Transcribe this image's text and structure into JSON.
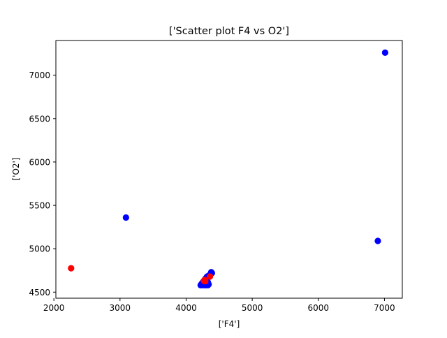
{
  "chart_data": {
    "type": "scatter",
    "title": "['Scatter plot F4 vs O2']",
    "xlabel": "['F4']",
    "ylabel": "['O2']",
    "xlim": [
      2030,
      7270
    ],
    "ylim": [
      4430,
      7400
    ],
    "xticks": [
      2000,
      3000,
      4000,
      5000,
      6000,
      7000
    ],
    "yticks": [
      4500,
      5000,
      5500,
      6000,
      6500,
      7000
    ],
    "xtick_labels": [
      "2000",
      "3000",
      "4000",
      "5000",
      "6000",
      "7000"
    ],
    "ytick_labels": [
      "4500",
      "5000",
      "5500",
      "6000",
      "6500",
      "7000"
    ],
    "grid": false,
    "series": [
      {
        "color": "#0000ff",
        "points": [
          {
            "x": 7010,
            "y": 7260
          },
          {
            "x": 3090,
            "y": 5360
          },
          {
            "x": 6900,
            "y": 5090
          },
          {
            "x": 4380,
            "y": 4730
          },
          {
            "x": 4390,
            "y": 4720
          },
          {
            "x": 4370,
            "y": 4710
          },
          {
            "x": 4340,
            "y": 4690
          },
          {
            "x": 4320,
            "y": 4680
          },
          {
            "x": 4310,
            "y": 4670
          },
          {
            "x": 4300,
            "y": 4660
          },
          {
            "x": 4290,
            "y": 4650
          },
          {
            "x": 4280,
            "y": 4640
          },
          {
            "x": 4270,
            "y": 4630
          },
          {
            "x": 4260,
            "y": 4620
          },
          {
            "x": 4250,
            "y": 4610
          },
          {
            "x": 4240,
            "y": 4600
          },
          {
            "x": 4230,
            "y": 4590
          },
          {
            "x": 4220,
            "y": 4580
          },
          {
            "x": 4250,
            "y": 4580
          },
          {
            "x": 4280,
            "y": 4580
          },
          {
            "x": 4300,
            "y": 4580
          },
          {
            "x": 4330,
            "y": 4580
          },
          {
            "x": 4340,
            "y": 4590
          },
          {
            "x": 4330,
            "y": 4610
          },
          {
            "x": 4320,
            "y": 4630
          },
          {
            "x": 4310,
            "y": 4600
          },
          {
            "x": 4260,
            "y": 4590
          },
          {
            "x": 4290,
            "y": 4600
          }
        ]
      },
      {
        "color": "#ff0000",
        "points": [
          {
            "x": 2260,
            "y": 4775
          },
          {
            "x": 4280,
            "y": 4640
          },
          {
            "x": 4290,
            "y": 4625
          },
          {
            "x": 4270,
            "y": 4630
          },
          {
            "x": 4360,
            "y": 4680
          }
        ]
      }
    ]
  }
}
